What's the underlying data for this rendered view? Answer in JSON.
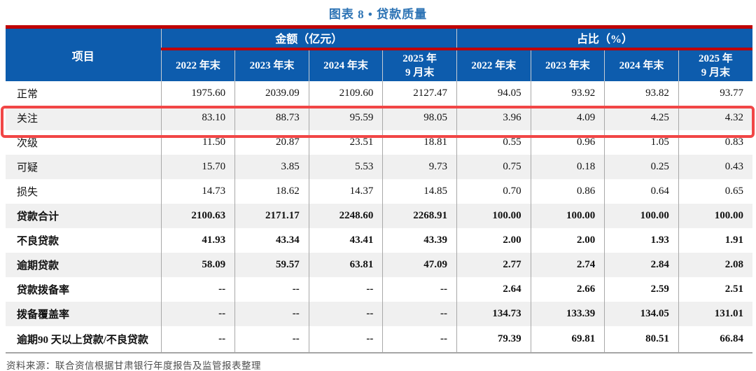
{
  "title": "图表 8 •  贷款质量",
  "source": "资料来源：联合资信根据甘肃银行年度报告及监管报表整理",
  "colors": {
    "header_blue": "#0d5cad",
    "rule_red": "#c00000",
    "highlight_red": "#f14646",
    "band_gray": "#f0f0f0",
    "title_blue": "#2e74b5"
  },
  "table": {
    "item_header": "项目",
    "groups": [
      {
        "label": "金额（亿元）"
      },
      {
        "label": "占比（%）"
      }
    ],
    "year_headers": [
      "2022 年末",
      "2023 年末",
      "2024 年末",
      "2025 年\n9 月末",
      "2022 年末",
      "2023 年末",
      "2024 年末",
      "2025 年\n9 月末"
    ],
    "rows": [
      {
        "label": "正常",
        "bold": false,
        "highlighted": false,
        "values": [
          "1975.60",
          "2039.09",
          "2109.60",
          "2127.47",
          "94.05",
          "93.92",
          "93.82",
          "93.77"
        ]
      },
      {
        "label": "关注",
        "bold": false,
        "highlighted": true,
        "values": [
          "83.10",
          "88.73",
          "95.59",
          "98.05",
          "3.96",
          "4.09",
          "4.25",
          "4.32"
        ]
      },
      {
        "label": "次级",
        "bold": false,
        "highlighted": false,
        "values": [
          "11.50",
          "20.87",
          "23.51",
          "18.81",
          "0.55",
          "0.96",
          "1.05",
          "0.83"
        ]
      },
      {
        "label": "可疑",
        "bold": false,
        "highlighted": false,
        "values": [
          "15.70",
          "3.85",
          "5.53",
          "9.73",
          "0.75",
          "0.18",
          "0.25",
          "0.43"
        ]
      },
      {
        "label": "损失",
        "bold": false,
        "highlighted": false,
        "values": [
          "14.73",
          "18.62",
          "14.37",
          "14.85",
          "0.70",
          "0.86",
          "0.64",
          "0.65"
        ]
      },
      {
        "label": "贷款合计",
        "bold": true,
        "highlighted": false,
        "values": [
          "2100.63",
          "2171.17",
          "2248.60",
          "2268.91",
          "100.00",
          "100.00",
          "100.00",
          "100.00"
        ]
      },
      {
        "label": "不良贷款",
        "bold": true,
        "highlighted": false,
        "values": [
          "41.93",
          "43.34",
          "43.41",
          "43.39",
          "2.00",
          "2.00",
          "1.93",
          "1.91"
        ]
      },
      {
        "label": "逾期贷款",
        "bold": true,
        "highlighted": false,
        "values": [
          "58.09",
          "59.57",
          "63.81",
          "47.09",
          "2.77",
          "2.74",
          "2.84",
          "2.08"
        ]
      },
      {
        "label": "贷款拨备率",
        "bold": true,
        "highlighted": false,
        "values": [
          "--",
          "--",
          "--",
          "--",
          "2.64",
          "2.66",
          "2.59",
          "2.51"
        ]
      },
      {
        "label": "拨备覆盖率",
        "bold": true,
        "highlighted": false,
        "values": [
          "--",
          "--",
          "--",
          "--",
          "134.73",
          "133.39",
          "134.05",
          "131.01"
        ]
      },
      {
        "label": "逾期90 天以上贷款/不良贷款",
        "bold": true,
        "highlighted": false,
        "values": [
          "--",
          "--",
          "--",
          "--",
          "79.39",
          "69.81",
          "80.51",
          "66.84"
        ]
      }
    ]
  }
}
